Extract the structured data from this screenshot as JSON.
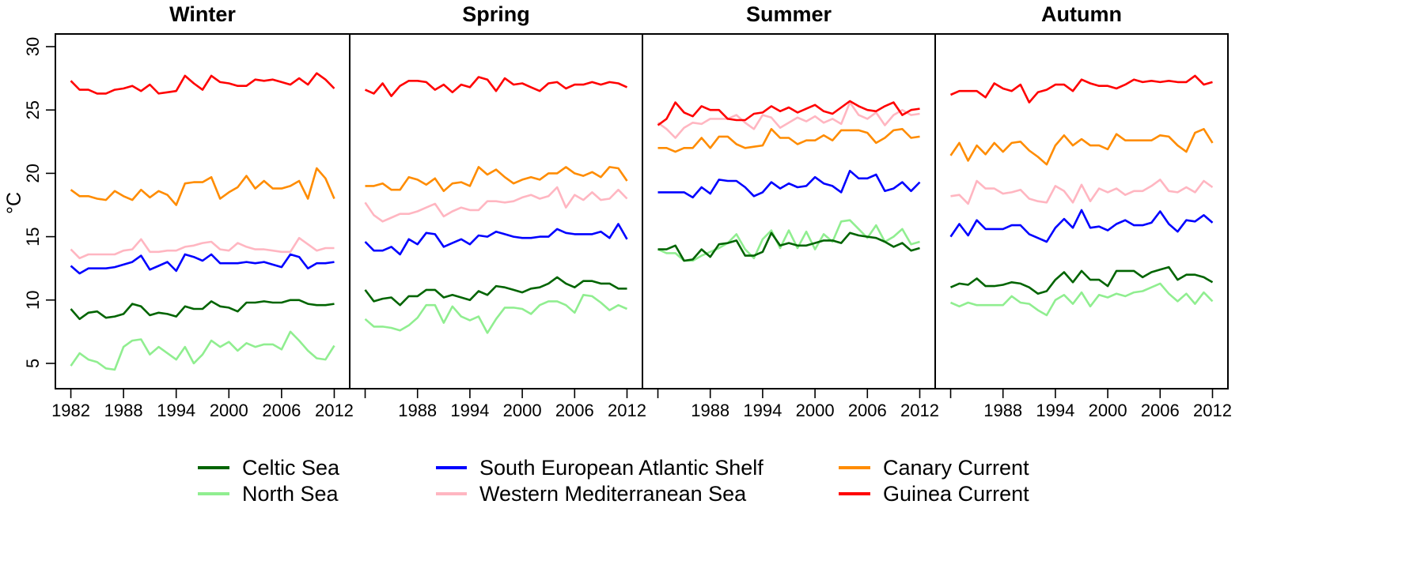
{
  "chart_data": {
    "type": "line",
    "ylabel": "°C",
    "ylim": [
      3,
      31
    ],
    "yticks": [
      5,
      10,
      15,
      20,
      25,
      30
    ],
    "xlim": [
      1981.5,
      2012.5
    ],
    "x_tick_values": [
      1982,
      1988,
      1994,
      2000,
      2006,
      2012
    ],
    "x_tick_labels_first": [
      "1982",
      "1988",
      "1994",
      "2000",
      "2006",
      "2012"
    ],
    "x_tick_labels_other": [
      "",
      "1988",
      "1994",
      "2000",
      "2006",
      "2012"
    ],
    "x_start": 1982,
    "series_info": [
      {
        "key": "celtic",
        "name": "Celtic Sea",
        "color": "#006400"
      },
      {
        "key": "north",
        "name": "North Sea",
        "color": "#90EE90"
      },
      {
        "key": "sea",
        "name": "South European Atlantic Shelf",
        "color": "#0000FF"
      },
      {
        "key": "wmed",
        "name": "Western Mediterranean Sea",
        "color": "#FFB6C1"
      },
      {
        "key": "canary",
        "name": "Canary Current",
        "color": "#FF8C00"
      },
      {
        "key": "guinea",
        "name": "Guinea Current",
        "color": "#FF0000"
      }
    ],
    "panels": [
      {
        "title": "Winter",
        "series": {
          "guinea": [
            27.3,
            26.6,
            26.6,
            26.3,
            26.3,
            26.6,
            26.7,
            26.9,
            26.5,
            27.0,
            26.3,
            26.4,
            26.5,
            27.7,
            27.1,
            26.6,
            27.7,
            27.2,
            27.1,
            26.9,
            26.9,
            27.4,
            27.3,
            27.4,
            27.2,
            27.0,
            27.5,
            27.0,
            27.9,
            27.4,
            26.7
          ],
          "canary": [
            18.7,
            18.2,
            18.2,
            18.0,
            17.9,
            18.6,
            18.2,
            17.9,
            18.7,
            18.1,
            18.6,
            18.3,
            17.5,
            19.2,
            19.3,
            19.3,
            19.7,
            18.0,
            18.5,
            18.9,
            19.8,
            18.8,
            19.4,
            18.8,
            18.8,
            19.0,
            19.4,
            18.0,
            20.4,
            19.6,
            18.0
          ],
          "wmed": [
            14.0,
            13.3,
            13.6,
            13.6,
            13.6,
            13.6,
            13.9,
            14.0,
            14.8,
            13.8,
            13.8,
            13.9,
            13.9,
            14.2,
            14.3,
            14.5,
            14.6,
            14.0,
            13.9,
            14.5,
            14.2,
            14.0,
            14.0,
            13.9,
            13.8,
            13.8,
            14.9,
            14.4,
            13.9,
            14.1,
            14.1
          ],
          "sea": [
            12.7,
            12.1,
            12.5,
            12.5,
            12.5,
            12.6,
            12.8,
            13.0,
            13.5,
            12.4,
            12.7,
            13.0,
            12.3,
            13.6,
            13.4,
            13.1,
            13.6,
            12.9,
            12.9,
            12.9,
            13.0,
            12.9,
            13.0,
            12.8,
            12.6,
            13.6,
            13.4,
            12.5,
            12.9,
            12.9,
            13.0
          ],
          "celtic": [
            9.3,
            8.5,
            9.0,
            9.1,
            8.6,
            8.7,
            8.9,
            9.7,
            9.5,
            8.8,
            9.0,
            8.9,
            8.7,
            9.5,
            9.3,
            9.3,
            9.9,
            9.5,
            9.4,
            9.1,
            9.8,
            9.8,
            9.9,
            9.8,
            9.8,
            10.0,
            10.0,
            9.7,
            9.6,
            9.6,
            9.7
          ],
          "north": [
            4.8,
            5.8,
            5.3,
            5.1,
            4.6,
            4.5,
            6.3,
            6.8,
            6.9,
            5.7,
            6.3,
            5.8,
            5.3,
            6.3,
            5.0,
            5.7,
            6.8,
            6.3,
            6.7,
            6.0,
            6.6,
            6.3,
            6.5,
            6.5,
            6.1,
            7.5,
            6.8,
            6.0,
            5.4,
            5.3,
            6.4
          ]
        }
      },
      {
        "title": "Spring",
        "series": {
          "guinea": [
            26.6,
            26.3,
            27.1,
            26.1,
            26.9,
            27.3,
            27.3,
            27.2,
            26.6,
            27.0,
            26.4,
            27.0,
            26.8,
            27.6,
            27.4,
            26.5,
            27.5,
            27.0,
            27.1,
            26.8,
            26.5,
            27.1,
            27.2,
            26.7,
            27.0,
            27.0,
            27.2,
            27.0,
            27.2,
            27.1,
            26.8
          ],
          "canary": [
            19.0,
            19.0,
            19.2,
            18.7,
            18.7,
            19.7,
            19.5,
            19.1,
            19.6,
            18.6,
            19.2,
            19.3,
            19.0,
            20.5,
            19.9,
            20.3,
            19.7,
            19.2,
            19.5,
            19.7,
            19.5,
            20.0,
            20.0,
            20.5,
            20.0,
            19.8,
            20.1,
            19.7,
            20.5,
            20.4,
            19.4
          ],
          "wmed": [
            17.7,
            16.7,
            16.2,
            16.5,
            16.8,
            16.8,
            17.0,
            17.3,
            17.6,
            16.6,
            17.0,
            17.3,
            17.1,
            17.1,
            17.8,
            17.8,
            17.7,
            17.8,
            18.1,
            18.3,
            18.0,
            18.2,
            18.9,
            17.3,
            18.3,
            17.9,
            18.5,
            17.9,
            18.0,
            18.7,
            18.0
          ],
          "sea": [
            14.6,
            13.9,
            13.9,
            14.2,
            13.6,
            14.8,
            14.4,
            15.3,
            15.2,
            14.2,
            14.5,
            14.8,
            14.4,
            15.1,
            15.0,
            15.4,
            15.2,
            15.0,
            14.9,
            14.9,
            15.0,
            15.0,
            15.6,
            15.3,
            15.2,
            15.2,
            15.2,
            15.4,
            14.9,
            16.0,
            14.8
          ],
          "celtic": [
            10.8,
            9.9,
            10.1,
            10.2,
            9.6,
            10.3,
            10.3,
            10.8,
            10.8,
            10.2,
            10.4,
            10.2,
            10.0,
            10.7,
            10.4,
            11.1,
            11.0,
            10.8,
            10.6,
            10.9,
            11.0,
            11.3,
            11.8,
            11.3,
            11.0,
            11.5,
            11.5,
            11.3,
            11.3,
            10.9,
            10.9
          ],
          "north": [
            8.5,
            7.9,
            7.9,
            7.8,
            7.6,
            8.0,
            8.6,
            9.6,
            9.6,
            8.2,
            9.5,
            8.7,
            8.4,
            8.7,
            7.4,
            8.5,
            9.4,
            9.4,
            9.3,
            8.9,
            9.6,
            9.9,
            9.9,
            9.6,
            9.0,
            10.4,
            10.3,
            9.8,
            9.2,
            9.6,
            9.3
          ]
        }
      },
      {
        "title": "Summer",
        "series": {
          "guinea": [
            23.8,
            24.3,
            25.6,
            24.8,
            24.5,
            25.3,
            25.0,
            25.0,
            24.3,
            24.2,
            24.2,
            24.7,
            24.8,
            25.3,
            24.9,
            25.2,
            24.8,
            25.1,
            25.4,
            24.9,
            24.7,
            25.2,
            25.7,
            25.3,
            25.0,
            24.9,
            25.3,
            25.6,
            24.6,
            25.0,
            25.1
          ],
          "canary": [
            22.0,
            22.0,
            21.7,
            22.0,
            22.0,
            22.8,
            22.0,
            22.9,
            22.9,
            22.3,
            22.0,
            22.1,
            22.2,
            23.5,
            22.8,
            22.8,
            22.3,
            22.6,
            22.6,
            23.0,
            22.6,
            23.4,
            23.4,
            23.4,
            23.2,
            22.4,
            22.8,
            23.4,
            23.5,
            22.8,
            22.9
          ],
          "wmed": [
            24.0,
            23.5,
            22.8,
            23.6,
            24.0,
            23.9,
            24.3,
            24.3,
            24.3,
            24.6,
            24.0,
            23.5,
            24.6,
            24.4,
            23.6,
            24.0,
            24.4,
            24.1,
            24.5,
            24.0,
            24.3,
            23.9,
            25.6,
            24.6,
            24.3,
            24.8,
            23.8,
            24.6,
            25.0,
            24.6,
            24.7
          ],
          "sea": [
            18.5,
            18.5,
            18.5,
            18.5,
            18.1,
            18.9,
            18.4,
            19.5,
            19.4,
            19.4,
            18.9,
            18.2,
            18.5,
            19.3,
            18.8,
            19.2,
            18.9,
            19.0,
            19.7,
            19.2,
            19.0,
            18.5,
            20.2,
            19.6,
            19.6,
            19.9,
            18.6,
            18.8,
            19.3,
            18.6,
            19.3
          ],
          "celtic": [
            14.0,
            14.0,
            14.3,
            13.1,
            13.2,
            14.0,
            13.4,
            14.4,
            14.5,
            14.7,
            13.5,
            13.5,
            13.8,
            15.3,
            14.3,
            14.5,
            14.3,
            14.3,
            14.5,
            14.7,
            14.7,
            14.5,
            15.3,
            15.1,
            15.0,
            14.9,
            14.6,
            14.2,
            14.5,
            13.9,
            14.1
          ],
          "north": [
            14.0,
            13.7,
            13.7,
            13.1,
            13.1,
            13.5,
            13.8,
            14.1,
            14.5,
            15.2,
            14.0,
            13.3,
            14.8,
            15.5,
            14.1,
            15.5,
            14.1,
            15.4,
            14.0,
            15.2,
            14.6,
            16.2,
            16.3,
            15.6,
            14.9,
            15.9,
            14.6,
            15.0,
            15.6,
            14.4,
            14.6
          ]
        }
      },
      {
        "title": "Autumn",
        "series": {
          "guinea": [
            26.2,
            26.5,
            26.5,
            26.5,
            26.0,
            27.1,
            26.7,
            26.5,
            27.0,
            25.6,
            26.4,
            26.6,
            27.0,
            27.0,
            26.5,
            27.4,
            27.1,
            26.9,
            26.9,
            26.7,
            27.0,
            27.4,
            27.2,
            27.3,
            27.2,
            27.3,
            27.2,
            27.2,
            27.7,
            27.0,
            27.2
          ],
          "canary": [
            21.4,
            22.4,
            21.0,
            22.2,
            21.5,
            22.4,
            21.7,
            22.4,
            22.5,
            21.8,
            21.3,
            20.7,
            22.2,
            23.0,
            22.2,
            22.7,
            22.2,
            22.2,
            21.9,
            23.1,
            22.6,
            22.6,
            22.6,
            22.6,
            23.0,
            22.9,
            22.2,
            21.7,
            23.2,
            23.5,
            22.4
          ],
          "wmed": [
            18.2,
            18.3,
            17.6,
            19.4,
            18.8,
            18.8,
            18.4,
            18.5,
            18.7,
            18.0,
            17.8,
            17.7,
            19.0,
            18.6,
            17.7,
            19.1,
            17.8,
            18.8,
            18.5,
            18.8,
            18.3,
            18.6,
            18.6,
            19.0,
            19.5,
            18.6,
            18.5,
            18.9,
            18.5,
            19.4,
            18.9
          ],
          "sea": [
            15.0,
            16.0,
            15.1,
            16.3,
            15.6,
            15.6,
            15.6,
            15.9,
            15.9,
            15.2,
            14.9,
            14.6,
            15.7,
            16.4,
            15.7,
            17.1,
            15.7,
            15.8,
            15.5,
            16.0,
            16.3,
            15.9,
            15.9,
            16.1,
            17.0,
            16.0,
            15.4,
            16.3,
            16.2,
            16.7,
            16.1
          ],
          "celtic": [
            11.0,
            11.3,
            11.2,
            11.7,
            11.1,
            11.1,
            11.2,
            11.4,
            11.3,
            11.0,
            10.5,
            10.7,
            11.6,
            12.2,
            11.4,
            12.3,
            11.6,
            11.6,
            11.1,
            12.3,
            12.3,
            12.3,
            11.8,
            12.2,
            12.4,
            12.6,
            11.6,
            12.0,
            12.0,
            11.8,
            11.4
          ],
          "north": [
            9.8,
            9.5,
            9.8,
            9.6,
            9.6,
            9.6,
            9.6,
            10.3,
            9.8,
            9.7,
            9.2,
            8.8,
            10.0,
            10.4,
            9.7,
            10.6,
            9.5,
            10.4,
            10.2,
            10.5,
            10.3,
            10.6,
            10.7,
            11.0,
            11.3,
            10.5,
            9.9,
            10.5,
            9.7,
            10.6,
            9.9
          ]
        }
      }
    ]
  }
}
